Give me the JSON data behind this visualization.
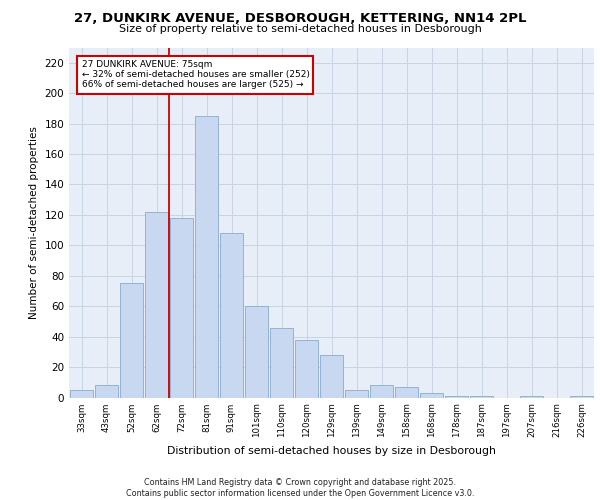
{
  "title_line1": "27, DUNKIRK AVENUE, DESBOROUGH, KETTERING, NN14 2PL",
  "title_line2": "Size of property relative to semi-detached houses in Desborough",
  "xlabel": "Distribution of semi-detached houses by size in Desborough",
  "ylabel": "Number of semi-detached properties",
  "categories": [
    "33sqm",
    "43sqm",
    "52sqm",
    "62sqm",
    "72sqm",
    "81sqm",
    "91sqm",
    "101sqm",
    "110sqm",
    "120sqm",
    "129sqm",
    "139sqm",
    "149sqm",
    "158sqm",
    "168sqm",
    "178sqm",
    "187sqm",
    "197sqm",
    "207sqm",
    "216sqm",
    "226sqm"
  ],
  "values": [
    5,
    8,
    75,
    122,
    118,
    185,
    108,
    60,
    46,
    38,
    28,
    5,
    8,
    7,
    3,
    1,
    1,
    0,
    1,
    0,
    1
  ],
  "bar_color": "#c8d8f0",
  "bar_edge_color": "#8aabcf",
  "grid_color": "#c8d4e4",
  "background_color": "#e8eef8",
  "vline_color": "#cc0000",
  "vline_x": 3.5,
  "annotation_text": "27 DUNKIRK AVENUE: 75sqm\n← 32% of semi-detached houses are smaller (252)\n66% of semi-detached houses are larger (525) →",
  "annotation_box_facecolor": "#ffffff",
  "annotation_box_edgecolor": "#cc0000",
  "footer_text": "Contains HM Land Registry data © Crown copyright and database right 2025.\nContains public sector information licensed under the Open Government Licence v3.0.",
  "ylim": [
    0,
    230
  ],
  "yticks": [
    0,
    20,
    40,
    60,
    80,
    100,
    120,
    140,
    160,
    180,
    200,
    220
  ]
}
